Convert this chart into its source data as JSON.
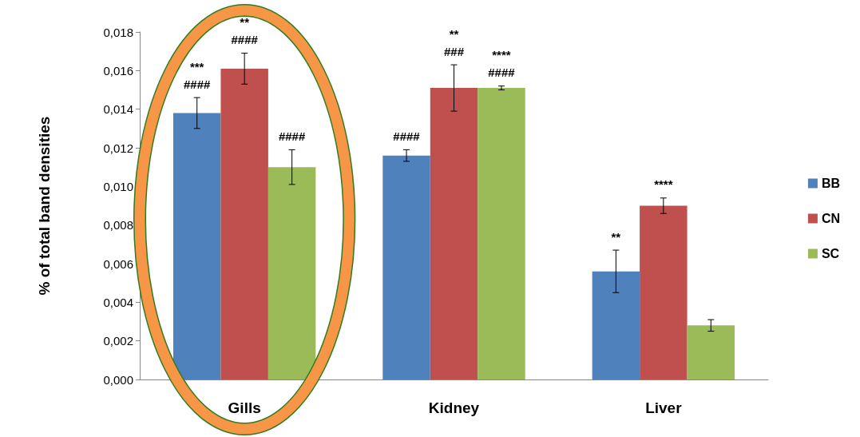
{
  "chart_data": {
    "type": "bar",
    "ylabel": "% of total band densities",
    "categories": [
      "Gills",
      "Kidney",
      "Liver"
    ],
    "series": [
      {
        "name": "BB",
        "color": "#4f81bd",
        "values": [
          0.0138,
          0.0116,
          0.0056
        ],
        "errors": [
          0.0008,
          0.0003,
          0.0011
        ],
        "value_labels": [
          "***\n####",
          "####",
          "**"
        ]
      },
      {
        "name": "CN",
        "color": "#c0504d",
        "values": [
          0.0161,
          0.0151,
          0.009
        ],
        "errors": [
          0.0008,
          0.0012,
          0.0004
        ],
        "value_labels": [
          "**\n####",
          "**\n###",
          "****"
        ]
      },
      {
        "name": "SC",
        "color": "#9bbb59",
        "values": [
          0.011,
          0.0151,
          0.0028
        ],
        "errors": [
          0.0009,
          0.0001,
          0.0003
        ],
        "value_labels": [
          "####",
          "****\n####",
          null
        ]
      }
    ],
    "ylim": [
      0,
      0.018
    ],
    "yticks": [
      {
        "value": 0,
        "label": "0,000"
      },
      {
        "value": 0.002,
        "label": "0,002"
      },
      {
        "value": 0.004,
        "label": "0,004"
      },
      {
        "value": 0.006,
        "label": "0,006"
      },
      {
        "value": 0.008,
        "label": "0,008"
      },
      {
        "value": 0.01,
        "label": "0,010"
      },
      {
        "value": 0.012,
        "label": "0,012"
      },
      {
        "value": 0.014,
        "label": "0,014"
      },
      {
        "value": 0.016,
        "label": "0,016"
      },
      {
        "value": 0.018,
        "label": "0,018"
      }
    ],
    "grid": false,
    "legend": "right"
  }
}
